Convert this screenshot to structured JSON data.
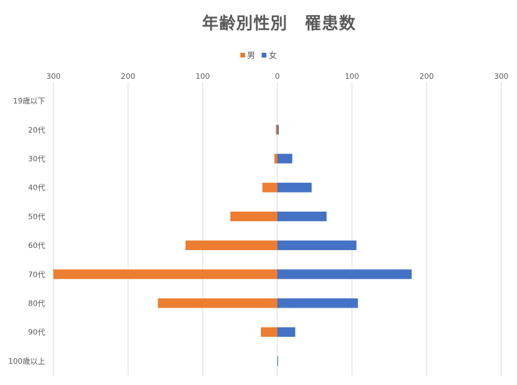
{
  "chart_data": {
    "type": "bar",
    "title": "年齢別性別　罹患数",
    "categories": [
      "19歳以下",
      "20代",
      "30代",
      "40代",
      "50代",
      "60代",
      "70代",
      "80代",
      "90代",
      "100歳以上"
    ],
    "series": [
      {
        "name": "男",
        "color": "#ED7D31",
        "values": [
          0,
          2,
          4,
          20,
          63,
          123,
          300,
          160,
          22,
          0
        ]
      },
      {
        "name": "女",
        "color": "#4472C4",
        "values": [
          0,
          2,
          20,
          46,
          66,
          106,
          180,
          108,
          24,
          1
        ]
      }
    ],
    "xlim": [
      -300,
      300
    ],
    "x_ticks": [
      {
        "value": -300,
        "label": "300"
      },
      {
        "value": -200,
        "label": "200"
      },
      {
        "value": -100,
        "label": "100"
      },
      {
        "value": 0,
        "label": "0"
      },
      {
        "value": 100,
        "label": "100"
      },
      {
        "value": 200,
        "label": "200"
      },
      {
        "value": 300,
        "label": "300"
      }
    ],
    "grid": true,
    "legend_position": "top",
    "orientation": "horizontal-butterfly"
  }
}
